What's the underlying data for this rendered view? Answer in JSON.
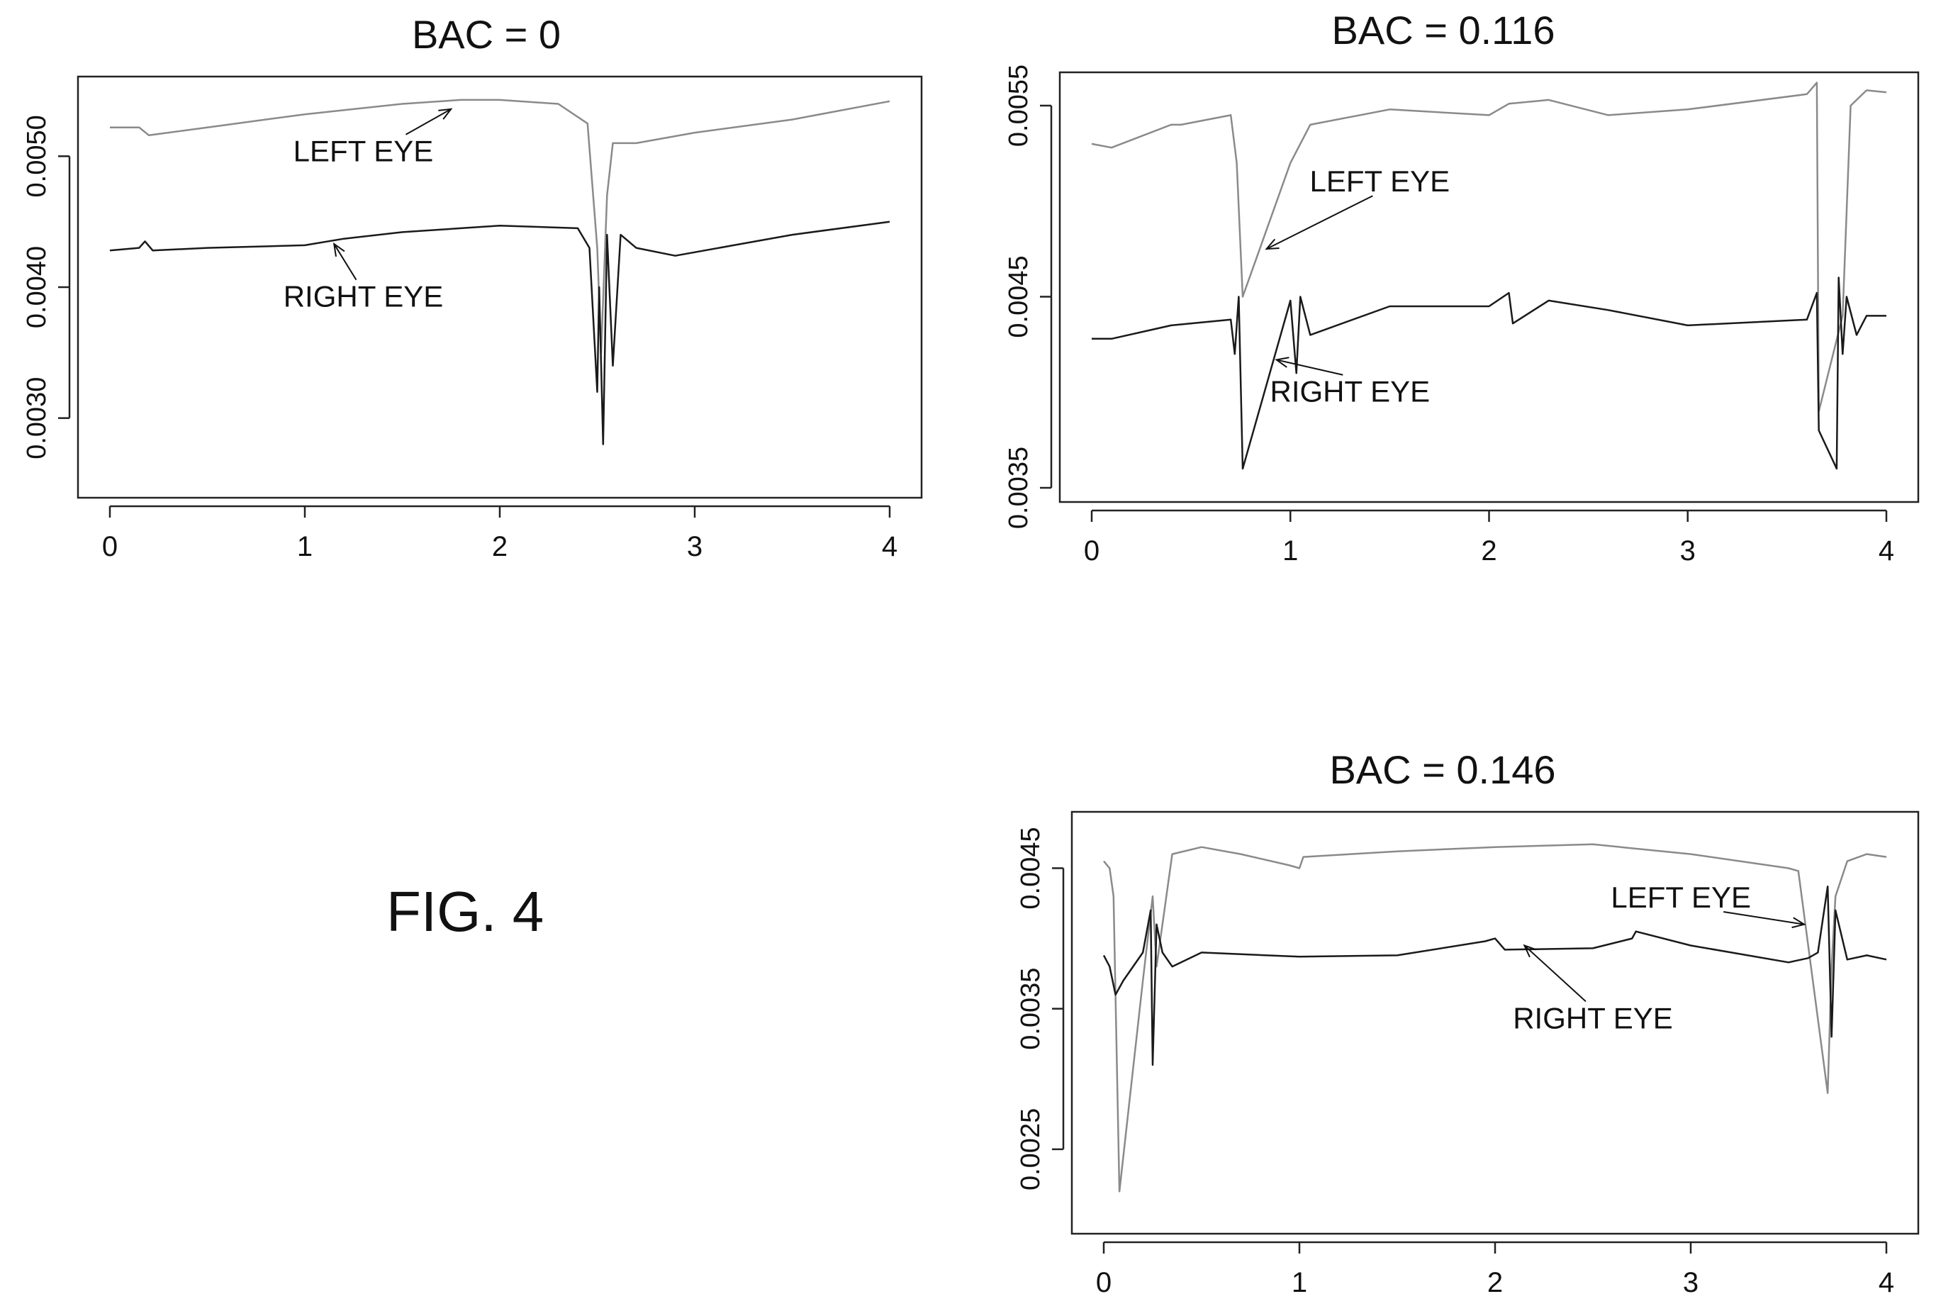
{
  "figure": {
    "label": "FIG. 4",
    "colors": {
      "left_eye": "#8a8a8a",
      "right_eye": "#1a1a1a",
      "axes": "#222222"
    }
  },
  "chart_data": [
    {
      "type": "line",
      "title": "BAC = 0",
      "xlabel": "",
      "ylabel": "",
      "xlim": [
        0,
        4
      ],
      "ylim": [
        0.0025,
        0.0055
      ],
      "xticks": [
        0,
        1,
        2,
        3,
        4
      ],
      "yticks": [
        0.003,
        0.004,
        0.005
      ],
      "ytick_labels": [
        "0.0030",
        "0.0040",
        "0.0050"
      ],
      "grid": false,
      "series": [
        {
          "name": "LEFT EYE",
          "color": "#8a8a8a",
          "x": [
            0,
            0.15,
            0.2,
            0.5,
            1.0,
            1.5,
            1.8,
            2.0,
            2.3,
            2.45,
            2.5,
            2.52,
            2.55,
            2.58,
            2.7,
            3.0,
            3.5,
            4.0
          ],
          "y": [
            0.00522,
            0.00522,
            0.00516,
            0.00522,
            0.00532,
            0.0054,
            0.00543,
            0.00543,
            0.0054,
            0.00525,
            0.0043,
            0.0035,
            0.0047,
            0.0051,
            0.0051,
            0.00518,
            0.00528,
            0.00542
          ]
        },
        {
          "name": "RIGHT EYE",
          "color": "#1a1a1a",
          "x": [
            0,
            0.15,
            0.18,
            0.22,
            0.5,
            1.0,
            1.2,
            1.5,
            2.0,
            2.4,
            2.46,
            2.5,
            2.51,
            2.53,
            2.55,
            2.58,
            2.62,
            2.7,
            2.9,
            3.2,
            3.5,
            4.0
          ],
          "y": [
            0.00428,
            0.0043,
            0.00435,
            0.00428,
            0.0043,
            0.00432,
            0.00437,
            0.00442,
            0.00447,
            0.00445,
            0.0043,
            0.0032,
            0.004,
            0.0028,
            0.0044,
            0.0034,
            0.0044,
            0.0043,
            0.00424,
            0.00432,
            0.0044,
            0.0045
          ]
        }
      ],
      "annotations": [
        {
          "text": "LEFT EYE",
          "x": 1.3,
          "y": 0.00496,
          "arrow_to": [
            1.75,
            0.00536
          ]
        },
        {
          "text": "RIGHT EYE",
          "x": 1.3,
          "y": 0.00385,
          "arrow_to": [
            1.15,
            0.00433
          ]
        }
      ]
    },
    {
      "type": "line",
      "title": "BAC = 0.116",
      "xlabel": "",
      "ylabel": "",
      "xlim": [
        0,
        4
      ],
      "ylim": [
        0.0035,
        0.0056
      ],
      "xticks": [
        0,
        1,
        2,
        3,
        4
      ],
      "yticks": [
        0.0035,
        0.0045,
        0.0055
      ],
      "ytick_labels": [
        "0.0035",
        "0.0045",
        "0.0055"
      ],
      "grid": false,
      "series": [
        {
          "name": "LEFT EYE",
          "color": "#8a8a8a",
          "x": [
            0,
            0.1,
            0.4,
            0.45,
            0.7,
            0.73,
            0.76,
            1.0,
            1.1,
            1.5,
            2.0,
            2.1,
            2.3,
            2.6,
            3.0,
            3.6,
            3.65,
            3.66,
            3.78,
            3.82,
            3.9,
            4.0
          ],
          "y": [
            0.0053,
            0.00528,
            0.0054,
            0.0054,
            0.00545,
            0.0052,
            0.0045,
            0.0052,
            0.0054,
            0.00548,
            0.00545,
            0.00551,
            0.00553,
            0.00545,
            0.00548,
            0.00556,
            0.00562,
            0.0039,
            0.0044,
            0.0055,
            0.00558,
            0.00557
          ]
        },
        {
          "name": "RIGHT EYE",
          "color": "#1a1a1a",
          "x": [
            0,
            0.1,
            0.4,
            0.7,
            0.72,
            0.74,
            0.76,
            1.0,
            1.03,
            1.05,
            1.1,
            1.5,
            2.0,
            2.1,
            2.12,
            2.3,
            2.6,
            3.0,
            3.6,
            3.65,
            3.66,
            3.75,
            3.76,
            3.78,
            3.8,
            3.85,
            3.9,
            4.0
          ],
          "y": [
            0.00428,
            0.00428,
            0.00435,
            0.00438,
            0.0042,
            0.0045,
            0.0036,
            0.00448,
            0.0041,
            0.0045,
            0.0043,
            0.00445,
            0.00445,
            0.00452,
            0.00436,
            0.00448,
            0.00443,
            0.00435,
            0.00438,
            0.00452,
            0.0038,
            0.0036,
            0.0046,
            0.0042,
            0.0045,
            0.0043,
            0.0044,
            0.0044
          ]
        }
      ],
      "annotations": [
        {
          "text": "LEFT EYE",
          "x": 1.45,
          "y": 0.00505,
          "arrow_to": [
            0.88,
            0.00475
          ]
        },
        {
          "text": "RIGHT EYE",
          "x": 1.3,
          "y": 0.00395,
          "arrow_to": [
            0.93,
            0.00417
          ]
        }
      ]
    },
    {
      "type": "line",
      "title": "BAC = 0.146",
      "xlabel": "",
      "ylabel": "",
      "xlim": [
        0,
        4
      ],
      "ylim": [
        0.002,
        0.0048
      ],
      "xticks": [
        0,
        1,
        2,
        3,
        4
      ],
      "yticks": [
        0.0025,
        0.0035,
        0.0045
      ],
      "ytick_labels": [
        "0.0025",
        "0.0035",
        "0.0045"
      ],
      "grid": false,
      "series": [
        {
          "name": "LEFT EYE",
          "color": "#8a8a8a",
          "x": [
            0,
            0.03,
            0.05,
            0.08,
            0.2,
            0.25,
            0.27,
            0.35,
            0.5,
            0.7,
            0.95,
            1.0,
            1.02,
            1.5,
            2.0,
            2.5,
            3.0,
            3.5,
            3.55,
            3.7,
            3.72,
            3.74,
            3.8,
            3.9,
            4.0
          ],
          "y": [
            0.00455,
            0.0045,
            0.0043,
            0.0022,
            0.0037,
            0.0043,
            0.0038,
            0.0046,
            0.00465,
            0.0046,
            0.00452,
            0.0045,
            0.00458,
            0.00462,
            0.00465,
            0.00467,
            0.0046,
            0.0045,
            0.00448,
            0.0029,
            0.0038,
            0.0043,
            0.00455,
            0.0046,
            0.00458
          ]
        },
        {
          "name": "RIGHT EYE",
          "color": "#1a1a1a",
          "x": [
            0,
            0.03,
            0.06,
            0.1,
            0.2,
            0.24,
            0.25,
            0.27,
            0.3,
            0.35,
            0.5,
            1.0,
            1.5,
            1.95,
            2.0,
            2.05,
            2.5,
            2.7,
            2.72,
            3.0,
            3.5,
            3.6,
            3.65,
            3.7,
            3.72,
            3.74,
            3.8,
            3.9,
            4.0
          ],
          "y": [
            0.00388,
            0.0038,
            0.0036,
            0.0037,
            0.0039,
            0.0042,
            0.0031,
            0.0041,
            0.0039,
            0.0038,
            0.0039,
            0.00387,
            0.00388,
            0.00398,
            0.004,
            0.00392,
            0.00393,
            0.004,
            0.00405,
            0.00395,
            0.00383,
            0.00386,
            0.0039,
            0.00437,
            0.0033,
            0.0042,
            0.00385,
            0.00388,
            0.00385
          ]
        }
      ],
      "annotations": [
        {
          "text": "LEFT EYE",
          "x": 2.95,
          "y": 0.00422,
          "arrow_to": [
            3.58,
            0.0041
          ]
        },
        {
          "text": "RIGHT EYE",
          "x": 2.5,
          "y": 0.00336,
          "arrow_to": [
            2.15,
            0.00395
          ]
        }
      ]
    }
  ]
}
